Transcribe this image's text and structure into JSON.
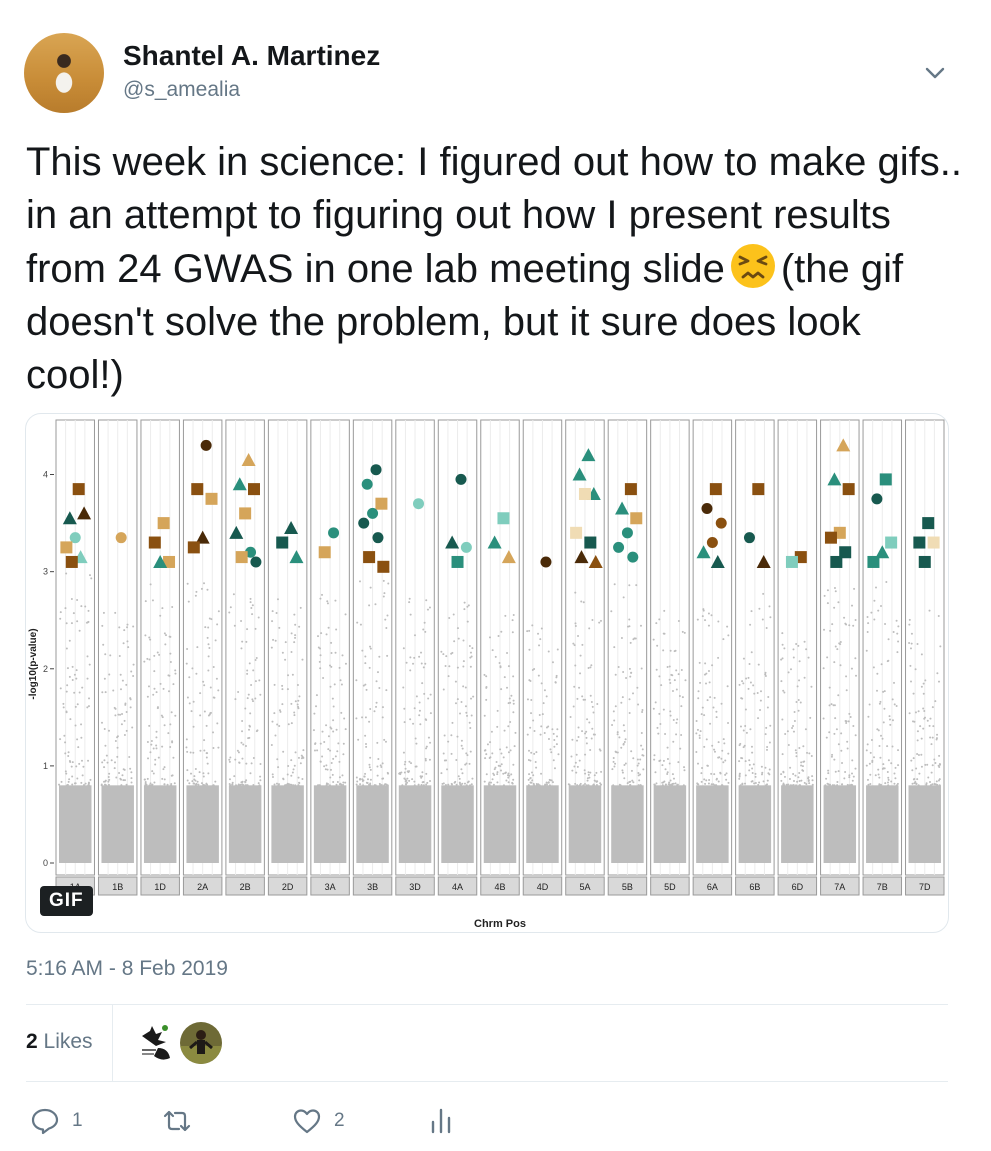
{
  "tweet": {
    "author_name": "Shantel A. Martinez",
    "author_handle": "@s_amealia",
    "text_before_emoji": "This week in science: I figured out how to make gifs.. in an attempt to figuring out how I present results from 24 GWAS in one lab meeting slide",
    "text_after_emoji": "(the gif doesn't solve the problem, but it sure does look cool!)",
    "emoji": "persevering-face-emoji",
    "timestamp": "5:16 AM - 8 Feb 2019",
    "likes_count": "2",
    "likes_label": "Likes",
    "reply_count": "1",
    "like_count_action": "2",
    "media_badge": "GIF"
  },
  "colors": {
    "text": "#14171a",
    "muted": "#657786",
    "border": "#e1e8ed",
    "dark_teal": "#17594f",
    "teal": "#2a8f7c",
    "light_teal": "#7fcdbd",
    "brown": "#8a5010",
    "tan": "#d5a55a",
    "light_tan": "#f0dcb4",
    "dark_brown": "#4a2a08",
    "gray_points": "#bdbdbd"
  },
  "chart_data": {
    "type": "scatter",
    "title": "",
    "xlabel": "Chrm Pos",
    "ylabel": "-log10(p-value)",
    "ylim": [
      0,
      4.5
    ],
    "yticks": [
      0,
      1,
      2,
      3,
      4
    ],
    "facets": [
      "1A",
      "1B",
      "1D",
      "2A",
      "2B",
      "2D",
      "3A",
      "3B",
      "3D",
      "4A",
      "4B",
      "4D",
      "5A",
      "5B",
      "5D",
      "6A",
      "6B",
      "6D",
      "7A",
      "7B",
      "7D"
    ],
    "background_series": {
      "name": "",
      "description_level_max": [
        3.0,
        2.6,
        2.9,
        2.9,
        2.9,
        2.8,
        2.8,
        3.0,
        2.8,
        2.7,
        2.6,
        2.5,
        2.8,
        2.9,
        2.6,
        2.7,
        2.8,
        2.5,
        2.9,
        2.9,
        2.6
      ]
    },
    "significant_points": [
      {
        "facet": 0,
        "y": 3.85,
        "shape": "square",
        "color": "brown"
      },
      {
        "facet": 0,
        "y": 3.55,
        "shape": "triangle",
        "color": "dark_teal"
      },
      {
        "facet": 0,
        "y": 3.6,
        "shape": "triangle",
        "color": "dark_brown"
      },
      {
        "facet": 0,
        "y": 3.35,
        "shape": "circle",
        "color": "light_teal"
      },
      {
        "facet": 0,
        "y": 3.25,
        "shape": "square",
        "color": "tan"
      },
      {
        "facet": 0,
        "y": 3.15,
        "shape": "triangle",
        "color": "light_teal"
      },
      {
        "facet": 0,
        "y": 3.1,
        "shape": "square",
        "color": "brown"
      },
      {
        "facet": 1,
        "y": 3.35,
        "shape": "circle",
        "color": "tan"
      },
      {
        "facet": 2,
        "y": 3.5,
        "shape": "square",
        "color": "tan"
      },
      {
        "facet": 2,
        "y": 3.3,
        "shape": "square",
        "color": "brown"
      },
      {
        "facet": 2,
        "y": 3.1,
        "shape": "square",
        "color": "tan"
      },
      {
        "facet": 2,
        "y": 3.1,
        "shape": "triangle",
        "color": "teal"
      },
      {
        "facet": 3,
        "y": 4.3,
        "shape": "circle",
        "color": "dark_brown"
      },
      {
        "facet": 3,
        "y": 3.85,
        "shape": "square",
        "color": "brown"
      },
      {
        "facet": 3,
        "y": 3.75,
        "shape": "square",
        "color": "tan"
      },
      {
        "facet": 3,
        "y": 3.35,
        "shape": "triangle",
        "color": "dark_brown"
      },
      {
        "facet": 3,
        "y": 3.25,
        "shape": "square",
        "color": "brown"
      },
      {
        "facet": 4,
        "y": 4.15,
        "shape": "triangle",
        "color": "tan"
      },
      {
        "facet": 4,
        "y": 3.9,
        "shape": "triangle",
        "color": "teal"
      },
      {
        "facet": 4,
        "y": 3.85,
        "shape": "square",
        "color": "brown"
      },
      {
        "facet": 4,
        "y": 3.6,
        "shape": "square",
        "color": "tan"
      },
      {
        "facet": 4,
        "y": 3.4,
        "shape": "triangle",
        "color": "dark_teal"
      },
      {
        "facet": 4,
        "y": 3.2,
        "shape": "circle",
        "color": "teal"
      },
      {
        "facet": 4,
        "y": 3.15,
        "shape": "square",
        "color": "tan"
      },
      {
        "facet": 4,
        "y": 3.1,
        "shape": "circle",
        "color": "dark_teal"
      },
      {
        "facet": 5,
        "y": 3.45,
        "shape": "triangle",
        "color": "dark_teal"
      },
      {
        "facet": 5,
        "y": 3.3,
        "shape": "square",
        "color": "dark_teal"
      },
      {
        "facet": 5,
        "y": 3.15,
        "shape": "triangle",
        "color": "teal"
      },
      {
        "facet": 6,
        "y": 3.4,
        "shape": "circle",
        "color": "teal"
      },
      {
        "facet": 6,
        "y": 3.2,
        "shape": "square",
        "color": "tan"
      },
      {
        "facet": 7,
        "y": 4.05,
        "shape": "circle",
        "color": "dark_teal"
      },
      {
        "facet": 7,
        "y": 3.9,
        "shape": "circle",
        "color": "teal"
      },
      {
        "facet": 7,
        "y": 3.7,
        "shape": "square",
        "color": "tan"
      },
      {
        "facet": 7,
        "y": 3.6,
        "shape": "circle",
        "color": "teal"
      },
      {
        "facet": 7,
        "y": 3.5,
        "shape": "circle",
        "color": "dark_teal"
      },
      {
        "facet": 7,
        "y": 3.35,
        "shape": "circle",
        "color": "dark_teal"
      },
      {
        "facet": 7,
        "y": 3.15,
        "shape": "square",
        "color": "brown"
      },
      {
        "facet": 7,
        "y": 3.05,
        "shape": "square",
        "color": "brown"
      },
      {
        "facet": 8,
        "y": 3.7,
        "shape": "circle",
        "color": "light_teal"
      },
      {
        "facet": 9,
        "y": 3.95,
        "shape": "circle",
        "color": "dark_teal"
      },
      {
        "facet": 9,
        "y": 3.3,
        "shape": "triangle",
        "color": "dark_teal"
      },
      {
        "facet": 9,
        "y": 3.25,
        "shape": "circle",
        "color": "light_teal"
      },
      {
        "facet": 9,
        "y": 3.1,
        "shape": "square",
        "color": "teal"
      },
      {
        "facet": 10,
        "y": 3.55,
        "shape": "square",
        "color": "light_teal"
      },
      {
        "facet": 10,
        "y": 3.3,
        "shape": "triangle",
        "color": "teal"
      },
      {
        "facet": 10,
        "y": 3.15,
        "shape": "triangle",
        "color": "tan"
      },
      {
        "facet": 11,
        "y": 3.1,
        "shape": "circle",
        "color": "dark_brown"
      },
      {
        "facet": 12,
        "y": 4.2,
        "shape": "triangle",
        "color": "teal"
      },
      {
        "facet": 12,
        "y": 4.0,
        "shape": "triangle",
        "color": "teal"
      },
      {
        "facet": 12,
        "y": 3.8,
        "shape": "triangle",
        "color": "teal"
      },
      {
        "facet": 12,
        "y": 3.8,
        "shape": "square",
        "color": "light_tan"
      },
      {
        "facet": 12,
        "y": 3.4,
        "shape": "square",
        "color": "light_tan"
      },
      {
        "facet": 12,
        "y": 3.3,
        "shape": "square",
        "color": "dark_teal"
      },
      {
        "facet": 12,
        "y": 3.15,
        "shape": "triangle",
        "color": "dark_brown"
      },
      {
        "facet": 12,
        "y": 3.1,
        "shape": "triangle",
        "color": "brown"
      },
      {
        "facet": 13,
        "y": 3.85,
        "shape": "square",
        "color": "brown"
      },
      {
        "facet": 13,
        "y": 3.65,
        "shape": "triangle",
        "color": "teal"
      },
      {
        "facet": 13,
        "y": 3.55,
        "shape": "square",
        "color": "tan"
      },
      {
        "facet": 13,
        "y": 3.4,
        "shape": "circle",
        "color": "teal"
      },
      {
        "facet": 13,
        "y": 3.25,
        "shape": "circle",
        "color": "teal"
      },
      {
        "facet": 13,
        "y": 3.15,
        "shape": "circle",
        "color": "teal"
      },
      {
        "facet": 15,
        "y": 3.85,
        "shape": "square",
        "color": "brown"
      },
      {
        "facet": 15,
        "y": 3.65,
        "shape": "circle",
        "color": "dark_brown"
      },
      {
        "facet": 15,
        "y": 3.5,
        "shape": "circle",
        "color": "brown"
      },
      {
        "facet": 15,
        "y": 3.3,
        "shape": "circle",
        "color": "brown"
      },
      {
        "facet": 15,
        "y": 3.2,
        "shape": "triangle",
        "color": "teal"
      },
      {
        "facet": 15,
        "y": 3.1,
        "shape": "triangle",
        "color": "dark_teal"
      },
      {
        "facet": 16,
        "y": 3.85,
        "shape": "square",
        "color": "brown"
      },
      {
        "facet": 16,
        "y": 3.35,
        "shape": "circle",
        "color": "dark_teal"
      },
      {
        "facet": 16,
        "y": 3.1,
        "shape": "triangle",
        "color": "dark_brown"
      },
      {
        "facet": 17,
        "y": 3.15,
        "shape": "square",
        "color": "brown"
      },
      {
        "facet": 17,
        "y": 3.1,
        "shape": "square",
        "color": "light_teal"
      },
      {
        "facet": 18,
        "y": 4.3,
        "shape": "triangle",
        "color": "tan"
      },
      {
        "facet": 18,
        "y": 3.95,
        "shape": "triangle",
        "color": "teal"
      },
      {
        "facet": 18,
        "y": 3.85,
        "shape": "square",
        "color": "brown"
      },
      {
        "facet": 18,
        "y": 3.4,
        "shape": "square",
        "color": "tan"
      },
      {
        "facet": 18,
        "y": 3.35,
        "shape": "square",
        "color": "brown"
      },
      {
        "facet": 18,
        "y": 3.2,
        "shape": "square",
        "color": "dark_teal"
      },
      {
        "facet": 18,
        "y": 3.1,
        "shape": "square",
        "color": "dark_teal"
      },
      {
        "facet": 19,
        "y": 3.95,
        "shape": "square",
        "color": "teal"
      },
      {
        "facet": 19,
        "y": 3.75,
        "shape": "circle",
        "color": "dark_teal"
      },
      {
        "facet": 19,
        "y": 3.3,
        "shape": "square",
        "color": "light_teal"
      },
      {
        "facet": 19,
        "y": 3.2,
        "shape": "triangle",
        "color": "teal"
      },
      {
        "facet": 19,
        "y": 3.1,
        "shape": "square",
        "color": "teal"
      },
      {
        "facet": 20,
        "y": 3.5,
        "shape": "square",
        "color": "dark_teal"
      },
      {
        "facet": 20,
        "y": 3.3,
        "shape": "square",
        "color": "dark_teal"
      },
      {
        "facet": 20,
        "y": 3.3,
        "shape": "square",
        "color": "light_tan"
      },
      {
        "facet": 20,
        "y": 3.1,
        "shape": "square",
        "color": "dark_teal"
      }
    ]
  }
}
